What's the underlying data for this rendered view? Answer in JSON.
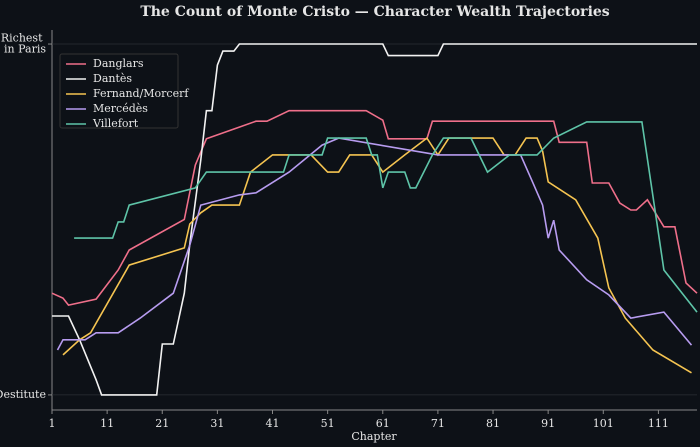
{
  "chart_data": {
    "type": "line",
    "title": "The Count of Monte Cristo — Character Wealth Trajectories",
    "x_label": "Chapter",
    "xlim": [
      1,
      118
    ],
    "xticks": [
      1,
      11,
      21,
      31,
      41,
      51,
      61,
      71,
      81,
      91,
      101,
      111
    ],
    "ylim": [
      -0.43,
      10.4
    ],
    "yticks": [
      {
        "value": 0,
        "label": "Destitute"
      },
      {
        "value": 10,
        "label": "Richest in Paris"
      }
    ],
    "legend": "upper left",
    "series": [
      {
        "name": "Danglars",
        "color": "#ef6f8a",
        "x": [
          1,
          3,
          4,
          9,
          13,
          15,
          25,
          27,
          29,
          38,
          40,
          44,
          58,
          61,
          62,
          69,
          70,
          92,
          93,
          98,
          99,
          102,
          104,
          106,
          107,
          109,
          112,
          114,
          116,
          118
        ],
        "values": [
          2.9,
          2.76,
          2.56,
          2.73,
          3.56,
          4.13,
          5.0,
          6.55,
          7.3,
          7.8,
          7.8,
          8.1,
          8.1,
          7.83,
          7.3,
          7.3,
          7.8,
          7.8,
          7.2,
          7.2,
          6.04,
          6.04,
          5.47,
          5.27,
          5.27,
          5.56,
          4.79,
          4.79,
          3.19,
          2.9
        ]
      },
      {
        "name": "Dantès",
        "color": "#f2f2f2",
        "x": [
          1,
          4,
          6,
          9,
          10,
          20,
          21,
          23,
          25,
          26,
          28,
          29,
          30,
          31,
          32,
          34,
          35,
          61,
          62,
          71,
          72,
          118
        ],
        "values": [
          2.25,
          2.25,
          1.57,
          0.43,
          0,
          0,
          1.45,
          1.45,
          2.9,
          4.3,
          6.7,
          8.1,
          8.1,
          9.4,
          9.8,
          9.8,
          10,
          10,
          9.67,
          9.67,
          10,
          10
        ]
      },
      {
        "name": "Fernand/Morcerf",
        "color": "#f5c451",
        "x": [
          3,
          6,
          8,
          15,
          25,
          26,
          28,
          30,
          35,
          37,
          41,
          48,
          51,
          53,
          55,
          59,
          61,
          65,
          69,
          71,
          73,
          81,
          83,
          85,
          87,
          89,
          90,
          91,
          96,
          100,
          102,
          105,
          110,
          117
        ],
        "values": [
          1.14,
          1.57,
          1.77,
          3.7,
          4.19,
          4.87,
          5.19,
          5.41,
          5.41,
          6.35,
          6.84,
          6.84,
          6.35,
          6.35,
          6.84,
          6.84,
          6.35,
          6.84,
          7.32,
          6.84,
          7.32,
          7.32,
          6.84,
          6.84,
          7.32,
          7.32,
          6.95,
          6.07,
          5.56,
          4.47,
          3.05,
          2.19,
          1.28,
          0.63
        ]
      },
      {
        "name": "Mercédès",
        "color": "#b79cf0",
        "x": [
          2,
          3,
          7,
          9,
          13,
          17,
          23,
          26,
          28,
          35,
          38,
          44,
          50,
          53,
          71,
          86,
          88,
          90,
          91,
          92,
          93,
          98,
          102,
          106,
          112,
          117
        ],
        "values": [
          1.28,
          1.57,
          1.57,
          1.77,
          1.77,
          2.19,
          2.9,
          4.27,
          5.41,
          5.7,
          5.76,
          6.35,
          7.12,
          7.32,
          6.84,
          6.84,
          6.13,
          5.41,
          4.47,
          4.98,
          4.13,
          3.28,
          2.85,
          2.19,
          2.36,
          1.42
        ]
      },
      {
        "name": "Villefort",
        "color": "#5ec4a8",
        "x": [
          5,
          12,
          13,
          14,
          15,
          27,
          29,
          43,
          44,
          50,
          51,
          58,
          59,
          60,
          61,
          62,
          65,
          66,
          67,
          70,
          72,
          77,
          80,
          84,
          89,
          92,
          98,
          108,
          112,
          118
        ],
        "values": [
          4.47,
          4.47,
          4.93,
          4.93,
          5.41,
          5.9,
          6.35,
          6.35,
          6.84,
          6.84,
          7.32,
          7.32,
          6.84,
          6.84,
          5.9,
          6.35,
          6.35,
          5.9,
          5.9,
          6.84,
          7.32,
          7.32,
          6.35,
          6.84,
          6.84,
          7.32,
          7.78,
          7.78,
          3.56,
          2.36
        ]
      }
    ]
  }
}
